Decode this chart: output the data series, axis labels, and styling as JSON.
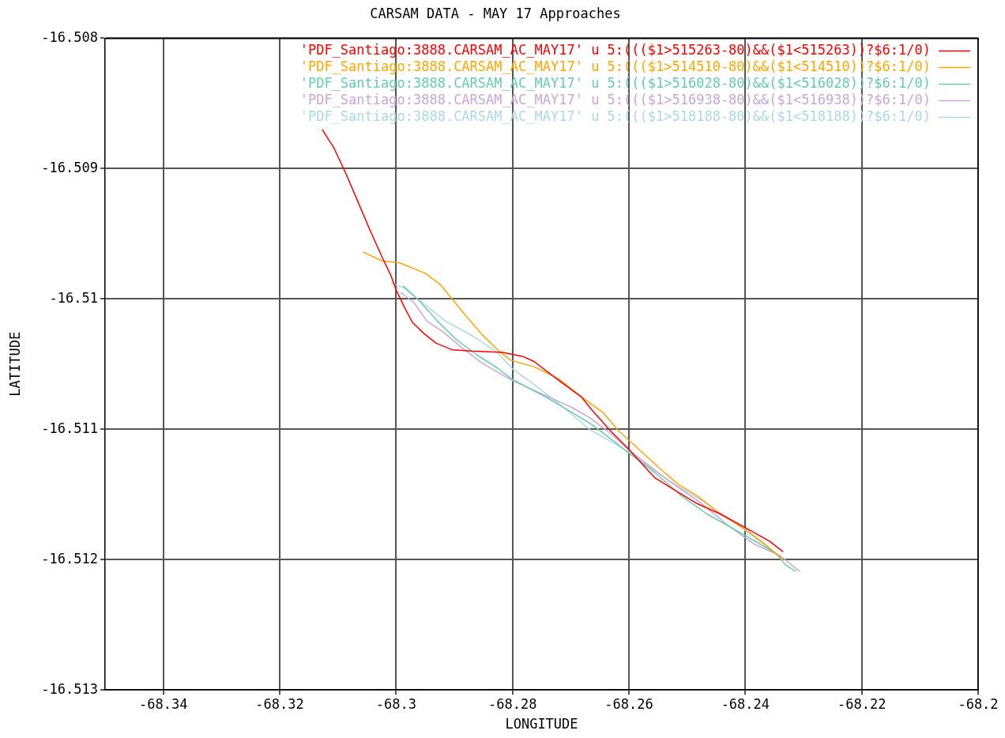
{
  "chart_data": {
    "type": "line",
    "title": "CARSAM DATA - MAY 17 Approaches",
    "xlabel": "LONGITUDE",
    "ylabel": "LATITUDE",
    "xlim": [
      -68.35,
      -68.2
    ],
    "xticks": [
      -68.34,
      -68.32,
      -68.3,
      -68.28,
      -68.26,
      -68.24,
      -68.22,
      -68.2
    ],
    "ylim": [
      -16.513,
      -16.508
    ],
    "yticks": [
      -16.513,
      -16.512,
      -16.511,
      -16.51,
      -16.509,
      -16.508
    ],
    "grid": true,
    "legend": "top right",
    "series": [
      {
        "name": "'PDF_Santiago:3888.CARSAM_AC_MAY17' u 5:((($1>515263-80)&&($1<515263))?$6:1/0)",
        "color": "#ff0000",
        "x": [
          -68.3127,
          -68.3107,
          -68.3086,
          -68.3066,
          -68.3046,
          -68.3026,
          -68.3009,
          -68.2999,
          -68.2985,
          -68.2972,
          -68.2951,
          -68.2931,
          -68.2904,
          -68.287,
          -68.2817,
          -68.2783,
          -68.2763,
          -68.2722,
          -68.2682,
          -68.2664,
          -68.2632,
          -68.2601,
          -68.2556,
          -68.252,
          -68.2483,
          -68.2443,
          -68.2398,
          -68.2358,
          -68.2335
        ],
        "values": [
          -16.5087,
          -16.50884,
          -16.50904,
          -16.50925,
          -16.50946,
          -16.50966,
          -16.50982,
          -16.50994,
          -16.51007,
          -16.51018,
          -16.51027,
          -16.51034,
          -16.51039,
          -16.5104,
          -16.51041,
          -16.51044,
          -16.51048,
          -16.51062,
          -16.51075,
          -16.51085,
          -16.51101,
          -16.51115,
          -16.51137,
          -16.51147,
          -16.51157,
          -16.51165,
          -16.51176,
          -16.51186,
          -16.51194
        ]
      },
      {
        "name": "'PDF_Santiago:3888.CARSAM_AC_MAY17' u 5:((($1>514510-80)&&($1<514510))?$6:1/0)",
        "color": "#ffa500",
        "x": [
          -68.3057,
          -68.3023,
          -68.2996,
          -68.2951,
          -68.2924,
          -68.2902,
          -68.288,
          -68.2853,
          -68.2821,
          -68.2803,
          -68.2763,
          -68.2722,
          -68.2682,
          -68.2645,
          -68.2618,
          -68.2601,
          -68.2547,
          -68.2516,
          -68.2483,
          -68.2443,
          -68.2402,
          -68.2367,
          -68.2335
        ],
        "values": [
          -16.50964,
          -16.50971,
          -16.50972,
          -16.5098,
          -16.50989,
          -16.51001,
          -16.51013,
          -16.51027,
          -16.51041,
          -16.51047,
          -16.51052,
          -16.51061,
          -16.51075,
          -16.51087,
          -16.51101,
          -16.51108,
          -16.5113,
          -16.51142,
          -16.51151,
          -16.51165,
          -16.51176,
          -16.51188,
          -16.512
        ]
      },
      {
        "name": "'PDF_Santiago:3888.CARSAM_AC_MAY17' u 5:((($1>516028-80)&&($1<516028))?$6:1/0)",
        "color": "#66cdaa",
        "x": [
          -68.2988,
          -68.2961,
          -68.2929,
          -68.2897,
          -68.2861,
          -68.2826,
          -68.2803,
          -68.2736,
          -68.2668,
          -68.2632,
          -68.2601,
          -68.2556,
          -68.251,
          -68.2466,
          -68.2402,
          -68.2348,
          -68.2331,
          -68.2313
        ],
        "values": [
          -16.5099,
          -16.51001,
          -16.51017,
          -16.51031,
          -16.51043,
          -16.51053,
          -16.51061,
          -16.51077,
          -16.51095,
          -16.51107,
          -16.51118,
          -16.51133,
          -16.51151,
          -16.51165,
          -16.51181,
          -16.51195,
          -16.51204,
          -16.51209
        ]
      },
      {
        "name": "'PDF_Santiago:3888.CARSAM_AC_MAY17' u 5:((($1>516938-80)&&($1<516938))?$6:1/0)",
        "color": "#c8a8d8",
        "x": [
          -68.2992,
          -68.2969,
          -68.2947,
          -68.292,
          -68.2888,
          -68.2853,
          -68.2803,
          -68.2749,
          -68.2699,
          -68.2668,
          -68.2632,
          -68.2597,
          -68.2533,
          -68.2475,
          -68.2429,
          -68.2385,
          -68.234,
          -68.2307
        ],
        "values": [
          -16.50995,
          -16.51003,
          -16.51017,
          -16.51025,
          -16.51037,
          -16.51049,
          -16.51062,
          -16.51073,
          -16.51083,
          -16.51091,
          -16.51103,
          -16.51117,
          -16.51139,
          -16.51157,
          -16.51174,
          -16.51188,
          -16.51197,
          -16.51209
        ]
      },
      {
        "name": "'PDF_Santiago:3888.CARSAM_AC_MAY17' u 5:((($1>518188-80)&&($1<518188))?$6:1/0)",
        "color": "#add8e6",
        "x": [
          -68.3009,
          -68.2988,
          -68.2955,
          -68.2915,
          -68.287,
          -68.2826,
          -68.2799,
          -68.2759,
          -68.2713,
          -68.2668,
          -68.2601,
          -68.2533,
          -68.2466,
          -68.2402,
          -68.2348,
          -68.2335
        ],
        "values": [
          -16.50988,
          -16.50991,
          -16.51003,
          -16.51017,
          -16.51028,
          -16.51041,
          -16.51054,
          -16.51067,
          -16.51083,
          -16.511,
          -16.51117,
          -16.51139,
          -16.51157,
          -16.51177,
          -16.51195,
          -16.512
        ]
      }
    ]
  }
}
